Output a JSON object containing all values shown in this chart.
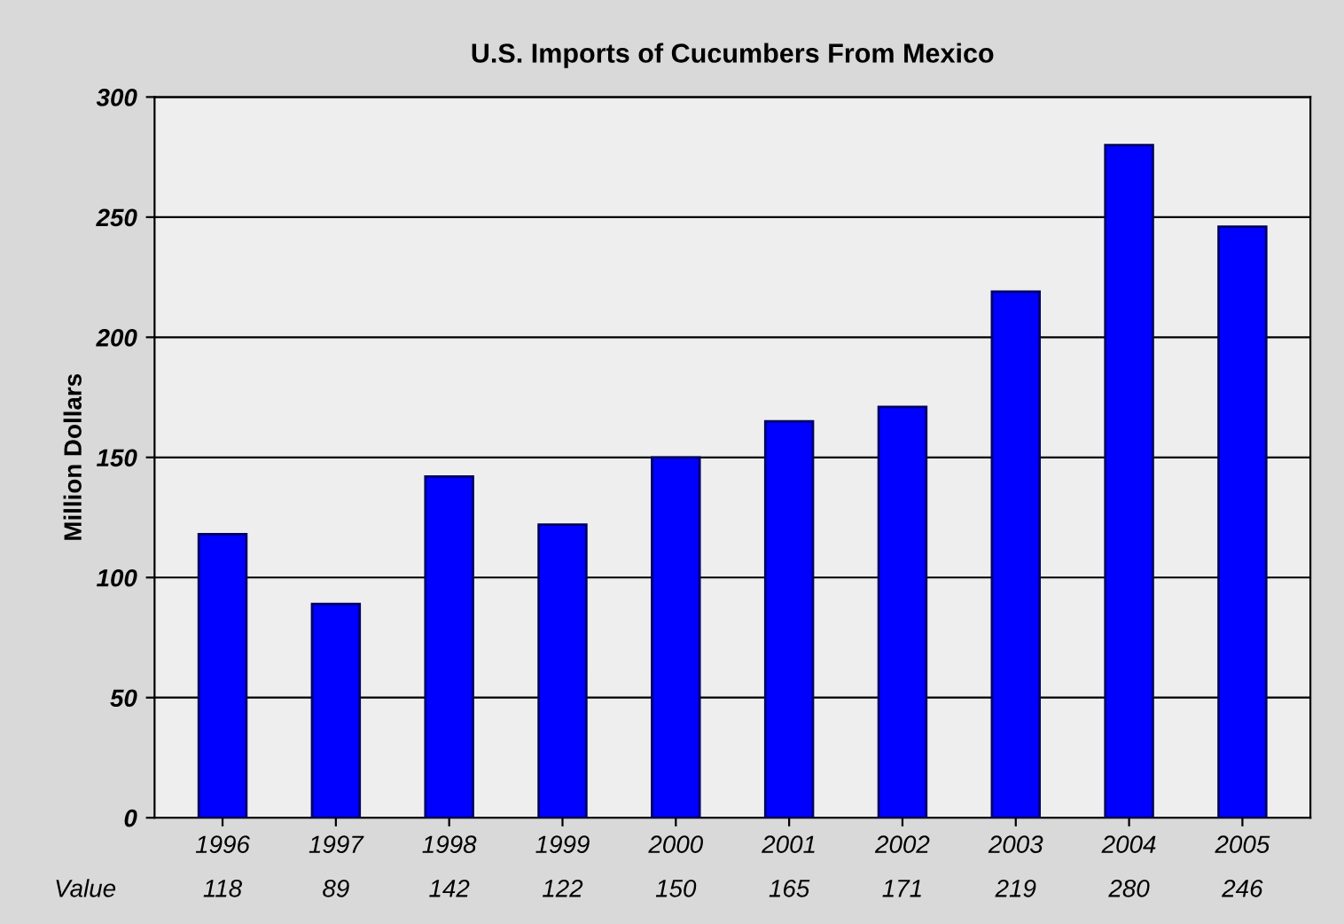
{
  "chart_data": {
    "type": "bar",
    "title": "U.S. Imports of Cucumbers From Mexico",
    "ylabel": "Million Dollars",
    "categories": [
      "1996",
      "1997",
      "1998",
      "1999",
      "2000",
      "2001",
      "2002",
      "2003",
      "2004",
      "2005"
    ],
    "values": [
      118,
      89,
      142,
      122,
      150,
      165,
      171,
      219,
      280,
      246
    ],
    "color": "#0000ff",
    "ylim": [
      0,
      300
    ],
    "yticks": [
      0,
      50,
      100,
      150,
      200,
      250,
      300
    ],
    "grid": "y",
    "legend": false,
    "data_labels": true,
    "annotations": [
      "Value"
    ]
  }
}
